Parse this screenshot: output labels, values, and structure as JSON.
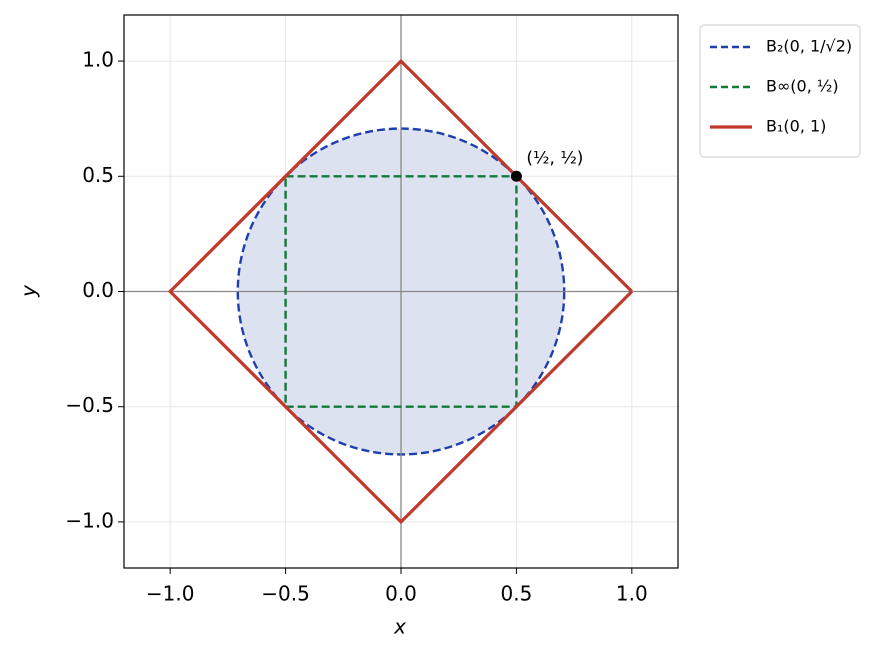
{
  "chart_data": {
    "type": "shapes",
    "x_label": "x",
    "y_label": "y",
    "xlim": [
      -1.2,
      1.2
    ],
    "ylim": [
      -1.2,
      1.2
    ],
    "xticks": [
      {
        "value": -1,
        "label": "−1.0"
      },
      {
        "value": -0.5,
        "label": "−0.5"
      },
      {
        "value": 0,
        "label": "0.0"
      },
      0.5,
      {
        "value": 1,
        "label": "1.0"
      }
    ],
    "yticks": [
      {
        "value": -1,
        "label": "−1.0"
      },
      {
        "value": -0.5,
        "label": "−0.5"
      },
      {
        "value": 0,
        "label": "0.0"
      },
      0.5,
      {
        "value": 1,
        "label": "1.0"
      }
    ],
    "grid": true,
    "zero_lines": true,
    "legend": "outside upper right",
    "series": [
      {
        "name": "B₂(0, 1/√2)",
        "kind": "circle",
        "color": "#1f3fb0",
        "fill": "#dde2f0",
        "dashed": true,
        "center": [
          0,
          0
        ],
        "radius": 0.7071
      },
      {
        "name": "B∞(0, ½)",
        "kind": "polygon",
        "color": "#137a3a",
        "dashed": true,
        "x": [
          -0.5,
          0.5,
          0.5,
          -0.5,
          -0.5
        ],
        "y": [
          0.5,
          0.5,
          -0.5,
          -0.5,
          0.5
        ]
      },
      {
        "name": "B₁(0, 1)",
        "kind": "polygon",
        "color": "#c0392b",
        "dashed": false,
        "x": [
          1,
          0,
          -1,
          0,
          1
        ],
        "y": [
          0,
          1,
          0,
          -1,
          0
        ]
      }
    ],
    "points": [
      {
        "x": 0.5,
        "y": 0.5,
        "label": "(½, ½)",
        "color": "#000000"
      }
    ]
  }
}
